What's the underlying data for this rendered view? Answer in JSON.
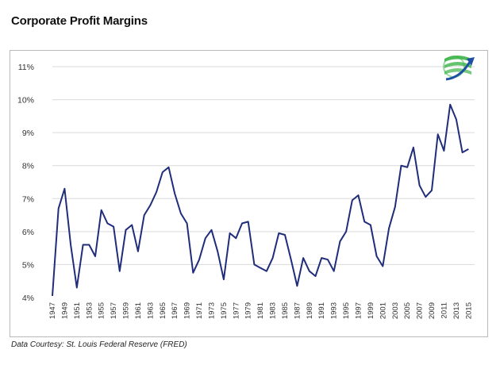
{
  "title": "Corporate Profit Margins",
  "source": "Data Courtesy: St. Louis Federal Reserve (FRED)",
  "colors": {
    "line": "#1f2d7a",
    "grid": "#d9d9d9",
    "logo_green": "#3cb44a",
    "logo_blue": "#1f4fa3"
  },
  "logo_icon": "globe-arrow-logo-icon",
  "chart_data": {
    "type": "line",
    "title": "Corporate Profit Margins",
    "xlabel": "",
    "ylabel": "",
    "xlim": [
      1947,
      2016
    ],
    "ylim": [
      4,
      11
    ],
    "grid": "horizontal",
    "y_ticks": [
      "4%",
      "5%",
      "6%",
      "7%",
      "8%",
      "9%",
      "10%",
      "11%"
    ],
    "y_tick_values": [
      4,
      5,
      6,
      7,
      8,
      9,
      10,
      11
    ],
    "x_ticks": [
      "1947",
      "1949",
      "1951",
      "1953",
      "1955",
      "1957",
      "1959",
      "1961",
      "1963",
      "1965",
      "1967",
      "1969",
      "1971",
      "1973",
      "1975",
      "1977",
      "1979",
      "1981",
      "1983",
      "1985",
      "1987",
      "1989",
      "1991",
      "1993",
      "1995",
      "1997",
      "1999",
      "2001",
      "2003",
      "2005",
      "2007",
      "2009",
      "2011",
      "2013",
      "2015"
    ],
    "series": [
      {
        "x": [
          1947,
          1948,
          1949,
          1950,
          1951,
          1952,
          1953,
          1954,
          1955,
          1956,
          1957,
          1958,
          1959,
          1960,
          1961,
          1962,
          1963,
          1964,
          1965,
          1966,
          1967,
          1968,
          1969,
          1970,
          1971,
          1972,
          1973,
          1974,
          1975,
          1976,
          1977,
          1978,
          1979,
          1980,
          1981,
          1982,
          1983,
          1984,
          1985,
          1986,
          1987,
          1988,
          1989,
          1990,
          1991,
          1992,
          1993,
          1994,
          1995,
          1996,
          1997,
          1998,
          1999,
          2000,
          2001,
          2002,
          2003,
          2004,
          2005,
          2006,
          2007,
          2008,
          2009,
          2010,
          2011,
          2012,
          2013,
          2014,
          2015
        ],
        "y": [
          4.05,
          6.7,
          7.3,
          5.6,
          4.3,
          5.6,
          5.6,
          5.25,
          6.65,
          6.25,
          6.15,
          4.8,
          6.05,
          6.2,
          5.4,
          6.5,
          6.8,
          7.2,
          7.8,
          7.95,
          7.15,
          6.55,
          6.25,
          4.75,
          5.15,
          5.8,
          6.05,
          5.4,
          4.55,
          5.95,
          5.8,
          6.25,
          6.3,
          5.0,
          4.9,
          4.8,
          5.2,
          5.95,
          5.9,
          5.15,
          4.35,
          5.2,
          4.8,
          4.65,
          5.2,
          5.15,
          4.8,
          5.7,
          6.0,
          6.95,
          7.1,
          6.3,
          6.2,
          5.25,
          4.95,
          6.1,
          6.75,
          8.0,
          7.95,
          8.55,
          7.4,
          7.05,
          7.25,
          8.95,
          8.45,
          9.85,
          9.4,
          8.4,
          8.5
        ]
      }
    ]
  }
}
